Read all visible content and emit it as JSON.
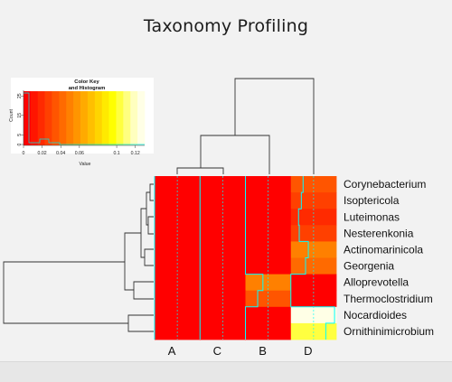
{
  "title": "Taxonomy Profiling",
  "color_key": {
    "title_line1": "Color Key",
    "title_line2": "and Histogram",
    "xlabel": "Value",
    "ylabel": "Count",
    "x_ticks": [
      "0",
      "0.02",
      "0.04",
      "0.06",
      "0.1",
      "0.12"
    ],
    "y_ticks": [
      "0",
      "5",
      "15",
      "25"
    ],
    "colors": [
      "#ff0000",
      "#ff1500",
      "#ff2a00",
      "#ff4000",
      "#ff5500",
      "#ff6a00",
      "#ff8000",
      "#ff9500",
      "#ffaa00",
      "#ffbf00",
      "#ffd400",
      "#ffea00",
      "#ffff00",
      "#ffff40",
      "#ffff80",
      "#ffffbf",
      "#ffffe6"
    ]
  },
  "chart_data": {
    "type": "heatmap",
    "title": "Taxonomy Profiling",
    "columns": [
      "A",
      "C",
      "B",
      "D"
    ],
    "rows": [
      "Corynebacterium",
      "Isoptericola",
      "Luteimonas",
      "Nesterenkonia",
      "Actinomarinicola",
      "Georgenia",
      "Alloprevotella",
      "Thermoclostridium",
      "Nocardioides",
      "Ornithinimicrobium"
    ],
    "values": [
      [
        0.0,
        0.0,
        0.0,
        0.035
      ],
      [
        0.0,
        0.0,
        0.0,
        0.03
      ],
      [
        0.0,
        0.0,
        0.0,
        0.022
      ],
      [
        0.0,
        0.0,
        0.0,
        0.024
      ],
      [
        0.0,
        0.0,
        0.0,
        0.05
      ],
      [
        0.0,
        0.0,
        0.0,
        0.042
      ],
      [
        0.0,
        0.0,
        0.05,
        0.0
      ],
      [
        0.0,
        0.0,
        0.035,
        0.0
      ],
      [
        0.0,
        0.0,
        0.0,
        0.125
      ],
      [
        0.0,
        0.0,
        0.0,
        0.1
      ]
    ],
    "value_range": [
      0,
      0.13
    ],
    "row_dendrogram": true,
    "column_dendrogram": true,
    "trace_color": "#00ffff"
  }
}
